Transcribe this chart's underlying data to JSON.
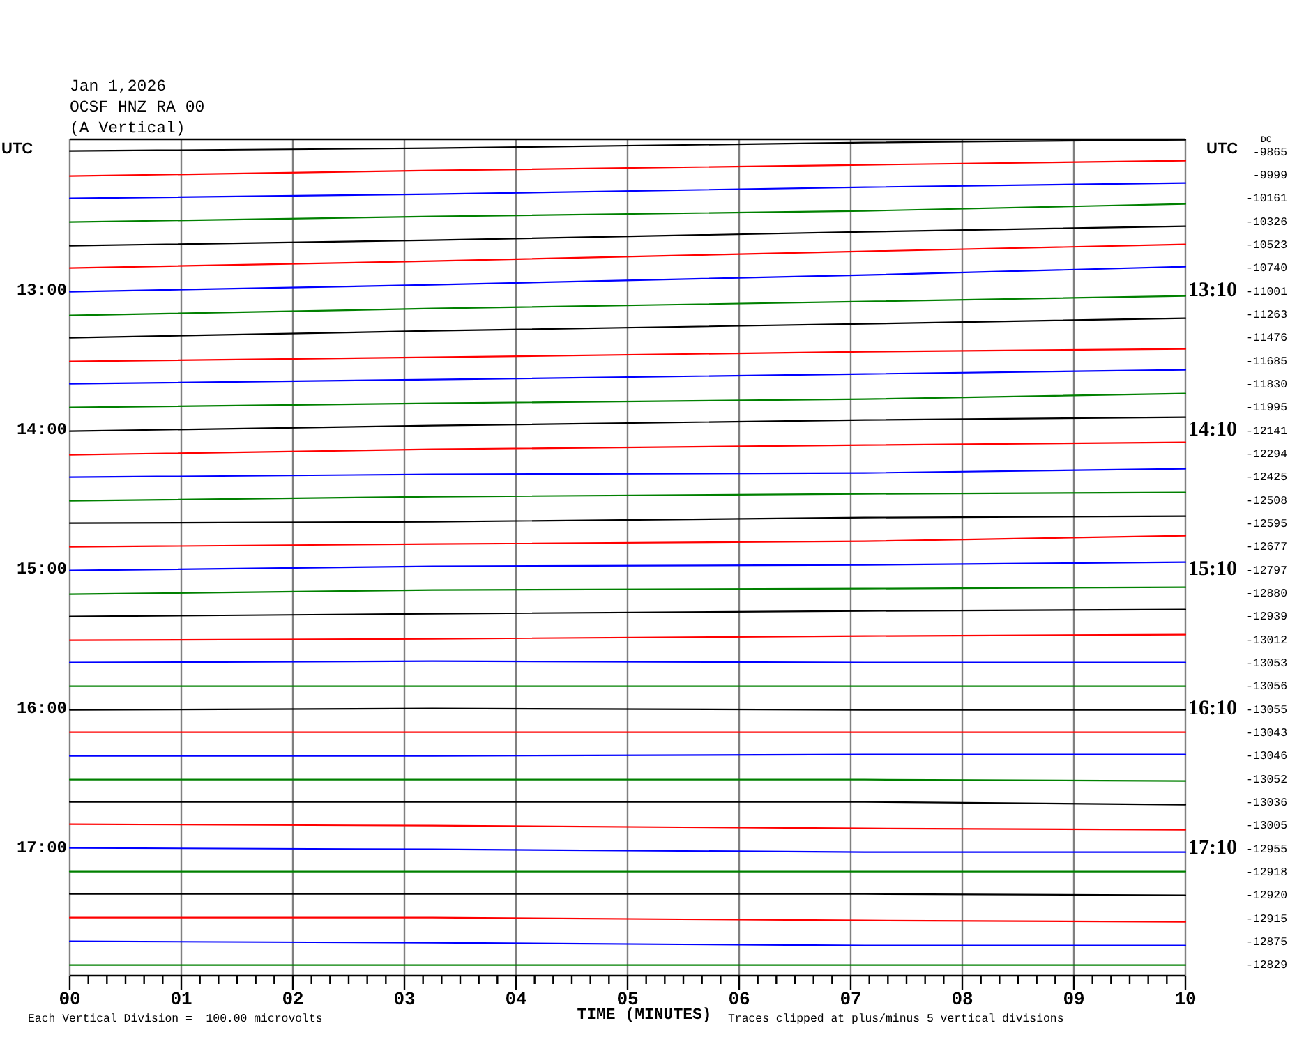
{
  "chart_data": {
    "type": "line",
    "title": "Jan 1,2026",
    "subtitle": "OCSF HNZ RA 00\n(A Vertical)",
    "xlabel": "TIME (MINUTES)",
    "ylabel": "UTC",
    "y2label": "UTC",
    "annotations": [
      "Each Vertical Division =  100.00 microvolts",
      "Traces clipped at plus/minus 5 vertical divisions",
      "DC",
      "-9865",
      "-9999",
      "-10161",
      "-10326",
      "-10523",
      "-10740",
      "-11001",
      "-11263",
      "-11476",
      "-11685",
      "-11830",
      "-11995",
      "-12141",
      "-12294",
      "-12425",
      "-12508",
      "-12595",
      "-12677",
      "-12797",
      "-12880",
      "-12939",
      "-13012",
      "-13053",
      "-13056",
      "-13055",
      "-13043",
      "-13046",
      "-13052",
      "-13036",
      "-13005",
      "-12955",
      "-12918",
      "-12920",
      "-12915",
      "-12875",
      "-12829"
    ],
    "x": [
      0,
      3.25,
      7.125,
      10
    ],
    "xlim": [
      0,
      10
    ],
    "xticks": [
      {
        "value": 0,
        "label": "00"
      },
      {
        "value": 0.1667,
        "label": null
      },
      {
        "value": 0.3333,
        "label": null
      },
      {
        "value": 0.5,
        "label": null
      },
      {
        "value": 0.6667,
        "label": null
      },
      {
        "value": 0.8333,
        "label": null
      },
      {
        "value": 1,
        "label": "01"
      },
      {
        "value": 1.1667,
        "label": null
      },
      {
        "value": 1.3333,
        "label": null
      },
      {
        "value": 1.5,
        "label": null
      },
      {
        "value": 1.6667,
        "label": null
      },
      {
        "value": 1.8333,
        "label": null
      },
      {
        "value": 2,
        "label": "02"
      },
      {
        "value": 2.1667,
        "label": null
      },
      {
        "value": 2.3333,
        "label": null
      },
      {
        "value": 2.5,
        "label": null
      },
      {
        "value": 2.6667,
        "label": null
      },
      {
        "value": 2.8333,
        "label": null
      },
      {
        "value": 3,
        "label": "03"
      },
      {
        "value": 3.1667,
        "label": null
      },
      {
        "value": 3.3333,
        "label": null
      },
      {
        "value": 3.5,
        "label": null
      },
      {
        "value": 3.6667,
        "label": null
      },
      {
        "value": 3.8333,
        "label": null
      },
      {
        "value": 4,
        "label": "04"
      },
      {
        "value": 4.1667,
        "label": null
      },
      {
        "value": 4.3333,
        "label": null
      },
      {
        "value": 4.5,
        "label": null
      },
      {
        "value": 4.6667,
        "label": null
      },
      {
        "value": 4.8333,
        "label": null
      },
      {
        "value": 5,
        "label": "05"
      },
      {
        "value": 5.1667,
        "label": null
      },
      {
        "value": 5.3333,
        "label": null
      },
      {
        "value": 5.5,
        "label": null
      },
      {
        "value": 5.6667,
        "label": null
      },
      {
        "value": 5.8333,
        "label": null
      },
      {
        "value": 6,
        "label": "06"
      },
      {
        "value": 6.1667,
        "label": null
      },
      {
        "value": 6.3333,
        "label": null
      },
      {
        "value": 6.5,
        "label": null
      },
      {
        "value": 6.6667,
        "label": null
      },
      {
        "value": 6.8333,
        "label": null
      },
      {
        "value": 7,
        "label": "07"
      },
      {
        "value": 7.1667,
        "label": null
      },
      {
        "value": 7.3333,
        "label": null
      },
      {
        "value": 7.5,
        "label": null
      },
      {
        "value": 7.6667,
        "label": null
      },
      {
        "value": 7.8333,
        "label": null
      },
      {
        "value": 8,
        "label": "08"
      },
      {
        "value": 8.1667,
        "label": null
      },
      {
        "value": 8.3333,
        "label": null
      },
      {
        "value": 8.5,
        "label": null
      },
      {
        "value": 8.6667,
        "label": null
      },
      {
        "value": 8.8333,
        "label": null
      },
      {
        "value": 9,
        "label": "09"
      },
      {
        "value": 9.1667,
        "label": null
      },
      {
        "value": 9.3333,
        "label": null
      },
      {
        "value": 9.5,
        "label": null
      },
      {
        "value": 9.6667,
        "label": null
      },
      {
        "value": 9.8333,
        "label": null
      },
      {
        "value": 10,
        "label": "10"
      }
    ],
    "ylim": [
      17.9167,
      11.9167
    ],
    "yticks": [
      {
        "value": 13,
        "label": "13:00"
      },
      {
        "value": 14,
        "label": "14:00"
      },
      {
        "value": 15,
        "label": "15:00"
      },
      {
        "value": 16,
        "label": "16:00"
      },
      {
        "value": 17,
        "label": "17:00"
      }
    ],
    "y2lim": [
      18.0833,
      12.0833
    ],
    "y2ticks": [
      {
        "value": 13.1667,
        "label": "13:10"
      },
      {
        "value": 14.1667,
        "label": "14:10"
      },
      {
        "value": 15.1667,
        "label": "15:10"
      },
      {
        "value": 16.1667,
        "label": "16:10"
      },
      {
        "value": 17.1667,
        "label": "17:10"
      }
    ],
    "grid": "x",
    "series": [
      {
        "color": "#000000",
        "values": [
          12.0,
          11.98,
          11.94,
          11.92
        ]
      },
      {
        "color": "#ff0000",
        "values": [
          12.18,
          12.14,
          12.1,
          12.07
        ]
      },
      {
        "color": "#0000ff",
        "values": [
          12.34,
          12.31,
          12.26,
          12.23
        ]
      },
      {
        "color": "#008000",
        "values": [
          12.51,
          12.47,
          12.43,
          12.38
        ]
      },
      {
        "color": "#000000",
        "values": [
          12.68,
          12.64,
          12.58,
          12.54
        ]
      },
      {
        "color": "#ff0000",
        "values": [
          12.84,
          12.79,
          12.72,
          12.67
        ]
      },
      {
        "color": "#0000ff",
        "values": [
          13.01,
          12.96,
          12.89,
          12.83
        ]
      },
      {
        "color": "#008000",
        "values": [
          13.18,
          13.13,
          13.08,
          13.04
        ]
      },
      {
        "color": "#000000",
        "values": [
          13.34,
          13.29,
          13.24,
          13.2
        ]
      },
      {
        "color": "#ff0000",
        "values": [
          13.51,
          13.48,
          13.44,
          13.42
        ]
      },
      {
        "color": "#0000ff",
        "values": [
          13.67,
          13.64,
          13.6,
          13.57
        ]
      },
      {
        "color": "#008000",
        "values": [
          13.84,
          13.81,
          13.78,
          13.74
        ]
      },
      {
        "color": "#000000",
        "values": [
          14.01,
          13.97,
          13.93,
          13.91
        ]
      },
      {
        "color": "#ff0000",
        "values": [
          14.18,
          14.14,
          14.11,
          14.09
        ]
      },
      {
        "color": "#0000ff",
        "values": [
          14.34,
          14.32,
          14.31,
          14.28
        ]
      },
      {
        "color": "#008000",
        "values": [
          14.51,
          14.48,
          14.46,
          14.45
        ]
      },
      {
        "color": "#000000",
        "values": [
          14.67,
          14.66,
          14.63,
          14.62
        ]
      },
      {
        "color": "#ff0000",
        "values": [
          14.84,
          14.82,
          14.8,
          14.76
        ]
      },
      {
        "color": "#0000ff",
        "values": [
          15.01,
          14.98,
          14.97,
          14.95
        ]
      },
      {
        "color": "#008000",
        "values": [
          15.18,
          15.15,
          15.14,
          15.13
        ]
      },
      {
        "color": "#000000",
        "values": [
          15.34,
          15.32,
          15.3,
          15.29
        ]
      },
      {
        "color": "#ff0000",
        "values": [
          15.51,
          15.5,
          15.48,
          15.47
        ]
      },
      {
        "color": "#0000ff",
        "values": [
          15.67,
          15.66,
          15.67,
          15.67
        ]
      },
      {
        "color": "#008000",
        "values": [
          15.84,
          15.84,
          15.84,
          15.84
        ]
      },
      {
        "color": "#000000",
        "values": [
          16.01,
          16.0,
          16.01,
          16.01
        ]
      },
      {
        "color": "#ff0000",
        "values": [
          16.17,
          16.17,
          16.17,
          16.17
        ]
      },
      {
        "color": "#0000ff",
        "values": [
          16.34,
          16.34,
          16.33,
          16.33
        ]
      },
      {
        "color": "#008000",
        "values": [
          16.51,
          16.51,
          16.51,
          16.52
        ]
      },
      {
        "color": "#000000",
        "values": [
          16.67,
          16.67,
          16.67,
          16.69
        ]
      },
      {
        "color": "#ff0000",
        "values": [
          16.83,
          16.84,
          16.86,
          16.87
        ]
      },
      {
        "color": "#0000ff",
        "values": [
          17.0,
          17.01,
          17.03,
          17.03
        ]
      },
      {
        "color": "#008000",
        "values": [
          17.17,
          17.17,
          17.17,
          17.17
        ]
      },
      {
        "color": "#000000",
        "values": [
          17.33,
          17.33,
          17.33,
          17.34
        ]
      },
      {
        "color": "#ff0000",
        "values": [
          17.5,
          17.5,
          17.52,
          17.53
        ]
      },
      {
        "color": "#0000ff",
        "values": [
          17.67,
          17.68,
          17.7,
          17.7
        ]
      },
      {
        "color": "#008000",
        "values": [
          17.84,
          17.84,
          17.84,
          17.84
        ]
      }
    ]
  }
}
